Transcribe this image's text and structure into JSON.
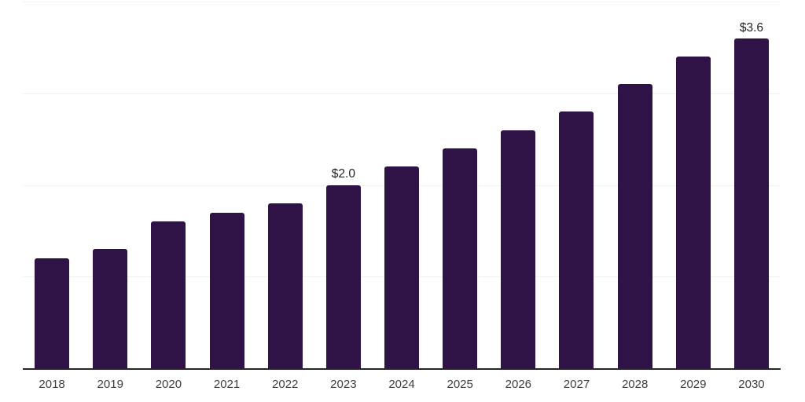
{
  "chart_data": {
    "type": "bar",
    "title": "",
    "xlabel": "",
    "ylabel": "",
    "categories": [
      "2018",
      "2019",
      "2020",
      "2021",
      "2022",
      "2023",
      "2024",
      "2025",
      "2026",
      "2027",
      "2028",
      "2029",
      "2030"
    ],
    "values": [
      1.2,
      1.3,
      1.6,
      1.7,
      1.8,
      2.0,
      2.2,
      2.4,
      2.6,
      2.8,
      3.1,
      3.4,
      3.6
    ],
    "bar_labels": [
      "",
      "",
      "",
      "",
      "",
      "$2.0",
      "",
      "",
      "",
      "",
      "",
      "",
      "$3.6"
    ],
    "ylim": [
      0,
      4.02
    ],
    "y_gridlines": [
      1,
      2,
      3,
      4
    ],
    "grid": "horizontal",
    "legend": "none",
    "colors": {
      "bar": "#2F1347",
      "gridline": "#f2f2f2",
      "axis_line": "#262626",
      "year_label": "#3d3d3d",
      "value_label": "#1f1f1f",
      "background": "#ffffff"
    }
  }
}
